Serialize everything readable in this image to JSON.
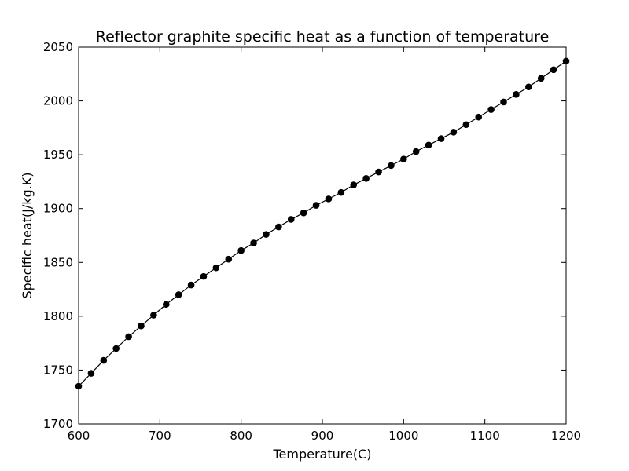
{
  "chart_data": {
    "type": "line",
    "title": "Reflector graphite specific heat as a function of temperature",
    "xlabel": "Temperature(C)",
    "ylabel": "Specific heat(J/kg.K)",
    "xlim": [
      600,
      1200
    ],
    "ylim": [
      1700,
      2050
    ],
    "xticks": [
      "600",
      "700",
      "800",
      "900",
      "1000",
      "1100",
      "1200"
    ],
    "yticks": [
      "1700",
      "1750",
      "1800",
      "1850",
      "1900",
      "1950",
      "2000",
      "2050"
    ],
    "grid": false,
    "marker": "circle",
    "line_color": "#000000",
    "series": [
      {
        "x": [
          600,
          615.38,
          630.77,
          646.15,
          661.54,
          676.92,
          692.31,
          707.69,
          723.08,
          738.46,
          753.85,
          769.23,
          784.62,
          800,
          815.38,
          830.77,
          846.15,
          861.54,
          876.92,
          892.31,
          907.69,
          923.08,
          938.46,
          953.85,
          969.23,
          984.62,
          1000,
          1015.38,
          1030.77,
          1046.15,
          1061.54,
          1076.92,
          1092.31,
          1107.69,
          1123.08,
          1138.46,
          1153.85,
          1169.23,
          1184.62,
          1200
        ],
        "y": [
          1735,
          1747,
          1759,
          1770,
          1781,
          1791,
          1801,
          1811,
          1820,
          1829,
          1837,
          1845,
          1853,
          1861,
          1868,
          1876,
          1883,
          1890,
          1896,
          1903,
          1909,
          1915,
          1922,
          1928,
          1934,
          1940,
          1946,
          1953,
          1959,
          1965,
          1971,
          1978,
          1985,
          1992,
          1999,
          2006,
          2013,
          2021,
          2029,
          2037
        ]
      }
    ]
  }
}
